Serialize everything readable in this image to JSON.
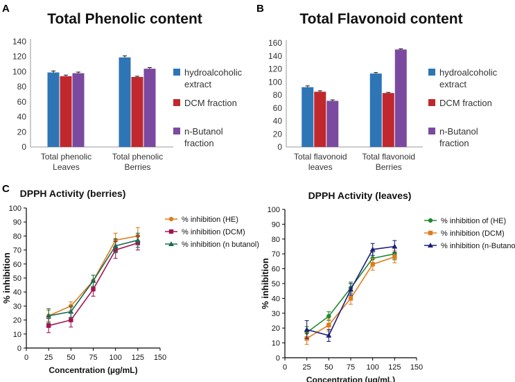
{
  "panels": {
    "a": "A",
    "b": "B",
    "c": "C"
  },
  "colors": {
    "bar_series": [
      "#2e75b6",
      "#c0282d",
      "#7b4aa0"
    ],
    "line_berries": [
      "#e07b1a",
      "#a3134f",
      "#1b6b53"
    ],
    "line_leaves": [
      "#1e8a2e",
      "#e07b1a",
      "#1c1f7a"
    ]
  },
  "chart_data": [
    {
      "type": "bar",
      "title": "Total Phenolic content",
      "categories": [
        [
          "Total phenolic",
          "Leaves"
        ],
        [
          "Total phenolic",
          "Berries"
        ]
      ],
      "series": [
        {
          "name": "hydroalcoholic extract",
          "values": [
            99,
            119
          ],
          "errors": [
            2,
            2
          ]
        },
        {
          "name": "DCM fraction",
          "values": [
            94,
            93
          ],
          "errors": [
            1.5,
            1
          ]
        },
        {
          "name": "n-Butanol fraction",
          "values": [
            98,
            104
          ],
          "errors": [
            1.5,
            1.5
          ]
        }
      ],
      "legend": [
        "hydroalcoholic extract",
        "DCM fraction",
        "n-Butanol fraction"
      ],
      "ylim": [
        0,
        140
      ],
      "yticks": [
        0,
        20,
        40,
        60,
        80,
        100,
        120,
        140
      ],
      "xlabel": "",
      "ylabel": ""
    },
    {
      "type": "bar",
      "title": "Total Flavonoid content",
      "categories": [
        [
          "Total flavonoid",
          "leaves"
        ],
        [
          "Total flavonoid",
          "Berries"
        ]
      ],
      "series": [
        {
          "name": "hydroalcoholic extract",
          "values": [
            92,
            113
          ],
          "errors": [
            2,
            1.5
          ]
        },
        {
          "name": "DCM fraction",
          "values": [
            85,
            83
          ],
          "errors": [
            1.5,
            1
          ]
        },
        {
          "name": "n-Butanol fraction",
          "values": [
            71,
            150
          ],
          "errors": [
            1.5,
            1
          ]
        }
      ],
      "legend": [
        "hydroalcoholic extract",
        "DCM fraction",
        "n-Butanol fraction"
      ],
      "ylim": [
        0,
        160
      ],
      "yticks": [
        0,
        20,
        40,
        60,
        80,
        100,
        120,
        140,
        160
      ],
      "xlabel": "",
      "ylabel": ""
    },
    {
      "type": "line",
      "title": "DPPH Activity (berries)",
      "xlabel": "Concentration (µg/mL)",
      "ylabel": "% inhibition",
      "x": [
        25,
        50,
        75,
        100,
        125
      ],
      "xlim": [
        0,
        150
      ],
      "ylim": [
        0,
        100
      ],
      "xticks": [
        0,
        25,
        50,
        75,
        100,
        125,
        150
      ],
      "yticks": [
        0,
        10,
        20,
        30,
        40,
        50,
        60,
        70,
        80,
        90,
        100
      ],
      "series": [
        {
          "name": "% inhibition (HE)",
          "marker": "circle",
          "values": [
            23,
            30,
            48,
            77,
            80
          ],
          "errors": [
            4,
            3,
            4,
            5,
            6
          ]
        },
        {
          "name": "% inhibition (DCM)",
          "marker": "square",
          "values": [
            16,
            20,
            42,
            70,
            75
          ],
          "errors": [
            5,
            5,
            5,
            6,
            5
          ]
        },
        {
          "name": "% inhibition (n butanol)",
          "marker": "triangle",
          "values": [
            23,
            26,
            48,
            73,
            77
          ],
          "errors": [
            5,
            4,
            4,
            5,
            5
          ]
        }
      ],
      "legend": [
        "% inhibition (HE)",
        "% inhibition (DCM)",
        "% inhibition (n butanol)"
      ]
    },
    {
      "type": "line",
      "title": "DPPH Activity (leaves)",
      "xlabel": "Concentration (µg/mL)",
      "ylabel": "% inhibition",
      "x": [
        25,
        50,
        75,
        100,
        125
      ],
      "xlim": [
        0,
        150
      ],
      "ylim": [
        0,
        100
      ],
      "xticks": [
        0,
        25,
        50,
        75,
        100,
        125,
        150
      ],
      "yticks": [
        0,
        10,
        20,
        30,
        40,
        50,
        60,
        70,
        80,
        90,
        100
      ],
      "series": [
        {
          "name": "% inhibition of (HE)",
          "marker": "circle",
          "values": [
            17,
            28,
            47,
            67,
            70
          ],
          "errors": [
            4,
            3,
            4,
            4,
            4
          ]
        },
        {
          "name": "% inhibition  (DCM)",
          "marker": "square",
          "values": [
            13,
            22,
            40,
            63,
            68
          ],
          "errors": [
            4,
            4,
            4,
            4,
            4
          ]
        },
        {
          "name": "% inhibition  (n-Butanol)",
          "marker": "triangle",
          "values": [
            19,
            15,
            46,
            73,
            75
          ],
          "errors": [
            6,
            4,
            4,
            4,
            4
          ]
        }
      ],
      "legend": [
        "% inhibition of (HE)",
        "% inhibition  (DCM)",
        "% inhibition  (n-Butanol)"
      ]
    }
  ]
}
